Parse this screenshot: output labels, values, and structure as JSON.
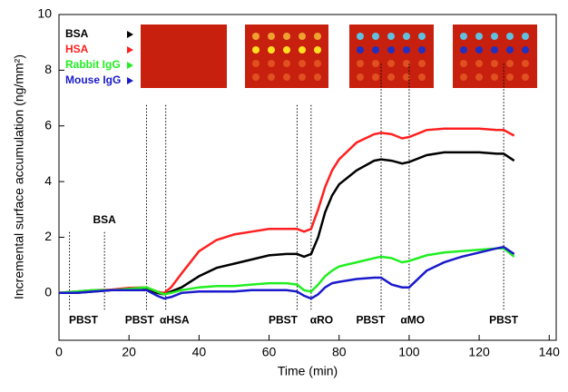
{
  "chart_data": {
    "type": "line",
    "x_label": "Time (min)",
    "y_label": "Incremental surface accumulation (ng/mm²)",
    "x": [
      0,
      5,
      10,
      15,
      20,
      25,
      28,
      30,
      32,
      35,
      40,
      45,
      50,
      55,
      60,
      65,
      68,
      70,
      72,
      74,
      76,
      78,
      80,
      85,
      90,
      92,
      95,
      98,
      100,
      105,
      110,
      115,
      120,
      125,
      127,
      130
    ],
    "series": [
      {
        "name": "BSA",
        "color": "#000000",
        "values": [
          0,
          0,
          0.05,
          0.1,
          0.15,
          0.15,
          0,
          -0.05,
          0.05,
          0.2,
          0.6,
          0.9,
          1.05,
          1.2,
          1.35,
          1.4,
          1.4,
          1.3,
          1.4,
          2.0,
          2.9,
          3.5,
          3.9,
          4.4,
          4.75,
          4.8,
          4.75,
          4.65,
          4.7,
          4.95,
          5.05,
          5.05,
          5.05,
          5.0,
          5.0,
          4.75
        ]
      },
      {
        "name": "HSA",
        "color": "#ff2020",
        "values": [
          0,
          0.05,
          0.1,
          0.12,
          0.18,
          0.2,
          0.05,
          0,
          0.2,
          0.7,
          1.5,
          1.9,
          2.1,
          2.2,
          2.3,
          2.3,
          2.3,
          2.2,
          2.3,
          3.0,
          3.8,
          4.4,
          4.8,
          5.4,
          5.7,
          5.75,
          5.7,
          5.55,
          5.6,
          5.85,
          5.9,
          5.9,
          5.9,
          5.85,
          5.85,
          5.65
        ]
      },
      {
        "name": "Rabbit IgG",
        "color": "#22ee22",
        "values": [
          0,
          0.05,
          0.1,
          0.1,
          0.15,
          0.2,
          0.05,
          -0.05,
          0,
          0.1,
          0.2,
          0.25,
          0.25,
          0.3,
          0.35,
          0.35,
          0.3,
          0.1,
          0.05,
          0.3,
          0.6,
          0.8,
          0.95,
          1.1,
          1.25,
          1.3,
          1.25,
          1.1,
          1.15,
          1.35,
          1.45,
          1.5,
          1.55,
          1.6,
          1.6,
          1.3
        ]
      },
      {
        "name": "Mouse IgG",
        "color": "#1a1acc",
        "values": [
          0,
          0,
          0.05,
          0.1,
          0.1,
          0.1,
          -0.1,
          -0.2,
          -0.15,
          0,
          0.05,
          0.05,
          0.05,
          0.1,
          0.1,
          0.1,
          0.05,
          -0.1,
          -0.2,
          -0.05,
          0.2,
          0.35,
          0.4,
          0.5,
          0.55,
          0.55,
          0.3,
          0.2,
          0.2,
          0.8,
          1.1,
          1.3,
          1.45,
          1.6,
          1.65,
          1.4
        ]
      }
    ],
    "xlim": [
      0,
      142
    ],
    "xticks": [
      0,
      20,
      40,
      60,
      80,
      100,
      120,
      140
    ],
    "ylim": [
      -1.7,
      10
    ],
    "yticks": [
      0,
      2,
      4,
      6,
      8,
      10
    ],
    "vlines": [
      {
        "x": 3,
        "y": [
          -0.6,
          2.2
        ]
      },
      {
        "x": 13,
        "y": [
          -0.6,
          2.2
        ]
      },
      {
        "x": 25,
        "y": [
          -0.6,
          6.8
        ]
      },
      {
        "x": 30.5,
        "y": [
          -0.6,
          6.8
        ]
      },
      {
        "x": 68,
        "y": [
          -0.6,
          6.8
        ]
      },
      {
        "x": 72,
        "y": [
          -0.6,
          6.8
        ]
      },
      {
        "x": 92,
        "y": [
          -0.6,
          8.3
        ]
      },
      {
        "x": 100,
        "y": [
          -0.6,
          8.3
        ]
      },
      {
        "x": 127,
        "y": [
          -0.6,
          8.3
        ]
      }
    ],
    "annotations": [
      {
        "text": "PBST",
        "x": 7,
        "y": -1.0
      },
      {
        "text": "BSA",
        "x": 13,
        "y": 2.6
      },
      {
        "text": "PBST",
        "x": 23,
        "y": -1.0
      },
      {
        "text": "αHSA",
        "x": 33,
        "y": -1.0
      },
      {
        "text": "PBST",
        "x": 64,
        "y": -1.0
      },
      {
        "text": "αRO",
        "x": 75,
        "y": -1.0
      },
      {
        "text": "PBST",
        "x": 89,
        "y": -1.0
      },
      {
        "text": "αMO",
        "x": 101,
        "y": -1.0
      },
      {
        "text": "PBST",
        "x": 127,
        "y": -1.0
      }
    ]
  }
}
